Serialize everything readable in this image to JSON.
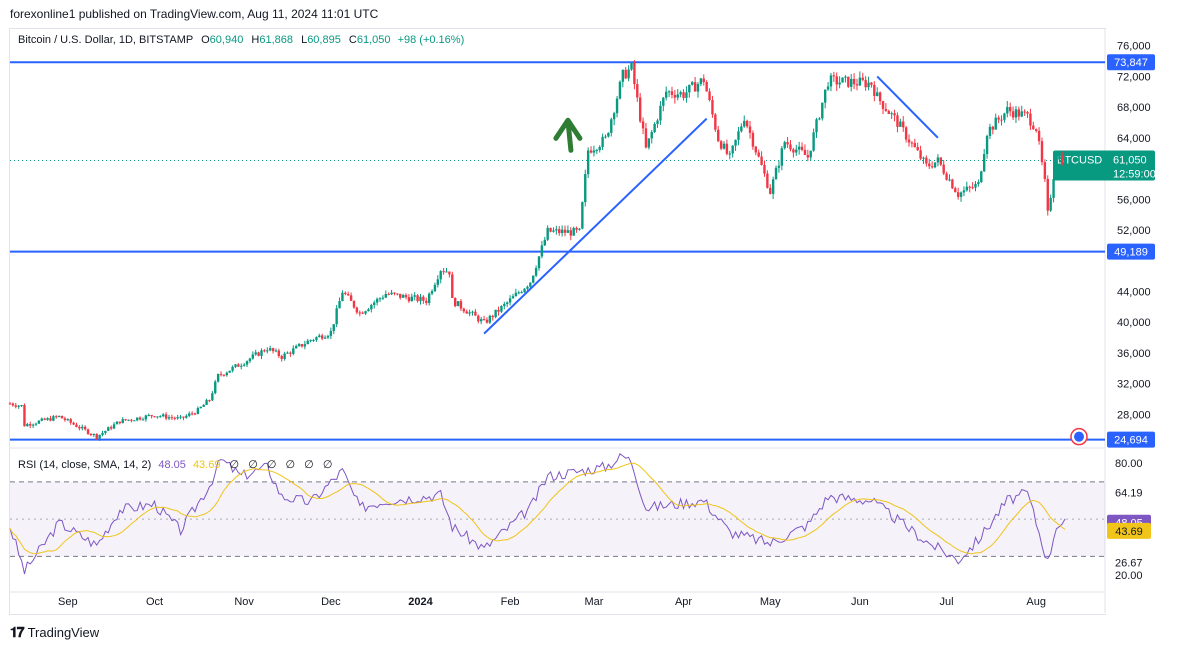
{
  "header": {
    "published": "forexonline1 published on TradingView.com, Aug 11, 2024 11:01 UTC"
  },
  "legend": {
    "symbol": "Bitcoin / U.S. Dollar, 1D, BITSTAMP",
    "o_label": "O",
    "o_value": "60,940",
    "h_label": "H",
    "h_value": "61,868",
    "l_label": "L",
    "l_value": "60,895",
    "c_label": "C",
    "c_value": "61,050",
    "change": "+98 (+0.16%)"
  },
  "rsi_legend": {
    "label": "RSI (14, close, SMA, 14, 2)",
    "rsi": "48.05",
    "sma": "43.69",
    "na": [
      "∅",
      "∅",
      "∅",
      "∅",
      "∅",
      "∅"
    ]
  },
  "footer": {
    "logo": "𝟏𝟕",
    "brand": "TradingView"
  },
  "colors": {
    "up": "#089981",
    "down": "#f23645",
    "line": "#2962ff",
    "rsi": "#7e57c2",
    "sma": "#f0c419",
    "arrow": "#2e7d32"
  },
  "chart_data": {
    "type": "candlestick",
    "symbol": "BTCUSD",
    "price_axis": {
      "ticks": [
        "76,000",
        "72,000",
        "68,000",
        "64,000",
        "56,000",
        "52,000",
        "44,000",
        "40,000",
        "36,000",
        "32,000",
        "28,000"
      ],
      "ylim": [
        24000,
        77000
      ]
    },
    "time_axis": {
      "ticks": [
        "Sep",
        "Oct",
        "Nov",
        "Dec",
        "2024",
        "Feb",
        "Mar",
        "Apr",
        "May",
        "Jun",
        "Jul",
        "Aug"
      ]
    },
    "last_price": {
      "label": "BTCUSD",
      "value": "61,050",
      "countdown": "12:59:00"
    },
    "horizontal_levels": [
      {
        "label": "73,847",
        "value": 73847
      },
      {
        "label": "49,189",
        "value": 49189
      },
      {
        "label": "24,694",
        "value": 24694
      }
    ],
    "trend_lines": [
      {
        "from": [
          "Jan 23 2024",
          38500
        ],
        "to": [
          "Apr 9 2024",
          66500
        ]
      },
      {
        "from": [
          "Jun 7 2024",
          72000
        ],
        "to": [
          "Jun 28 2024",
          64000
        ]
      }
    ],
    "annotation": {
      "type": "up-arrow",
      "date": "Feb 21 2024",
      "value": 65500
    },
    "anchors": [
      [
        "2023-08-12",
        29400
      ],
      [
        "2023-08-16",
        29100
      ],
      [
        "2023-08-17",
        26600
      ],
      [
        "2023-08-29",
        27700
      ],
      [
        "2023-09-11",
        25100
      ],
      [
        "2023-09-19",
        27100
      ],
      [
        "2023-10-01",
        27900
      ],
      [
        "2023-10-10",
        27400
      ],
      [
        "2023-10-16",
        28500
      ],
      [
        "2023-10-20",
        29900
      ],
      [
        "2023-10-23",
        33000
      ],
      [
        "2023-10-31",
        34600
      ],
      [
        "2023-11-09",
        36600
      ],
      [
        "2023-11-14",
        35500
      ],
      [
        "2023-11-24",
        37700
      ],
      [
        "2023-12-01",
        38700
      ],
      [
        "2023-12-05",
        44000
      ],
      [
        "2023-12-11",
        41200
      ],
      [
        "2023-12-20",
        43700
      ],
      [
        "2024-01-03",
        42800
      ],
      [
        "2024-01-08",
        46900
      ],
      [
        "2024-01-11",
        46600
      ],
      [
        "2024-01-12",
        42800
      ],
      [
        "2024-01-23",
        39900
      ],
      [
        "2024-01-31",
        42500
      ],
      [
        "2024-02-08",
        45300
      ],
      [
        "2024-02-14",
        51800
      ],
      [
        "2024-02-25",
        51700
      ],
      [
        "2024-02-28",
        62400
      ],
      [
        "2024-03-05",
        63800
      ],
      [
        "2024-03-11",
        72100
      ],
      [
        "2024-03-14",
        73100
      ],
      [
        "2024-03-19",
        62500
      ],
      [
        "2024-03-26",
        70000
      ],
      [
        "2024-04-01",
        69700
      ],
      [
        "2024-04-08",
        71600
      ],
      [
        "2024-04-13",
        63900
      ],
      [
        "2024-04-17",
        61300
      ],
      [
        "2024-04-22",
        66800
      ],
      [
        "2024-05-01",
        57000
      ],
      [
        "2024-05-06",
        63500
      ],
      [
        "2024-05-14",
        61500
      ],
      [
        "2024-05-21",
        71400
      ],
      [
        "2024-06-05",
        71100
      ],
      [
        "2024-06-07",
        69300
      ],
      [
        "2024-06-14",
        66000
      ],
      [
        "2024-06-24",
        60300
      ],
      [
        "2024-06-28",
        61000
      ],
      [
        "2024-07-05",
        56700
      ],
      [
        "2024-07-12",
        57900
      ],
      [
        "2024-07-15",
        64800
      ],
      [
        "2024-07-22",
        67600
      ],
      [
        "2024-07-29",
        66800
      ],
      [
        "2024-08-01",
        65300
      ],
      [
        "2024-08-04",
        58100
      ],
      [
        "2024-08-05",
        54000
      ],
      [
        "2024-08-08",
        61700
      ],
      [
        "2024-08-11",
        61050
      ]
    ],
    "rsi": {
      "ylim": [
        20,
        86
      ],
      "ticks": [
        "80.00",
        "64.19",
        "26.67",
        "20.00"
      ],
      "bands": [
        70,
        30
      ],
      "current": {
        "rsi": "48.05",
        "sma": "43.69"
      },
      "anchors": [
        [
          "2023-08-12",
          46
        ],
        [
          "2023-08-17",
          22
        ],
        [
          "2023-08-29",
          48
        ],
        [
          "2023-09-11",
          36
        ],
        [
          "2023-09-19",
          55
        ],
        [
          "2023-10-01",
          58
        ],
        [
          "2023-10-10",
          44
        ],
        [
          "2023-10-20",
          68
        ],
        [
          "2023-10-24",
          82
        ],
        [
          "2023-10-31",
          73
        ],
        [
          "2023-11-09",
          78
        ],
        [
          "2023-11-14",
          62
        ],
        [
          "2023-11-24",
          59
        ],
        [
          "2023-12-05",
          76
        ],
        [
          "2023-12-11",
          56
        ],
        [
          "2023-12-20",
          60
        ],
        [
          "2024-01-08",
          63
        ],
        [
          "2024-01-12",
          46
        ],
        [
          "2024-01-23",
          34
        ],
        [
          "2024-02-08",
          56
        ],
        [
          "2024-02-14",
          73
        ],
        [
          "2024-03-05",
          78
        ],
        [
          "2024-03-11",
          84
        ],
        [
          "2024-03-14",
          81
        ],
        [
          "2024-03-19",
          56
        ],
        [
          "2024-04-08",
          60
        ],
        [
          "2024-04-17",
          43
        ],
        [
          "2024-05-01",
          37
        ],
        [
          "2024-05-14",
          47
        ],
        [
          "2024-05-21",
          62
        ],
        [
          "2024-06-05",
          60
        ],
        [
          "2024-06-24",
          38
        ],
        [
          "2024-07-05",
          28
        ],
        [
          "2024-07-12",
          39
        ],
        [
          "2024-07-22",
          60
        ],
        [
          "2024-07-29",
          64
        ],
        [
          "2024-08-05",
          27
        ],
        [
          "2024-08-08",
          47
        ],
        [
          "2024-08-11",
          48.05
        ]
      ]
    }
  }
}
